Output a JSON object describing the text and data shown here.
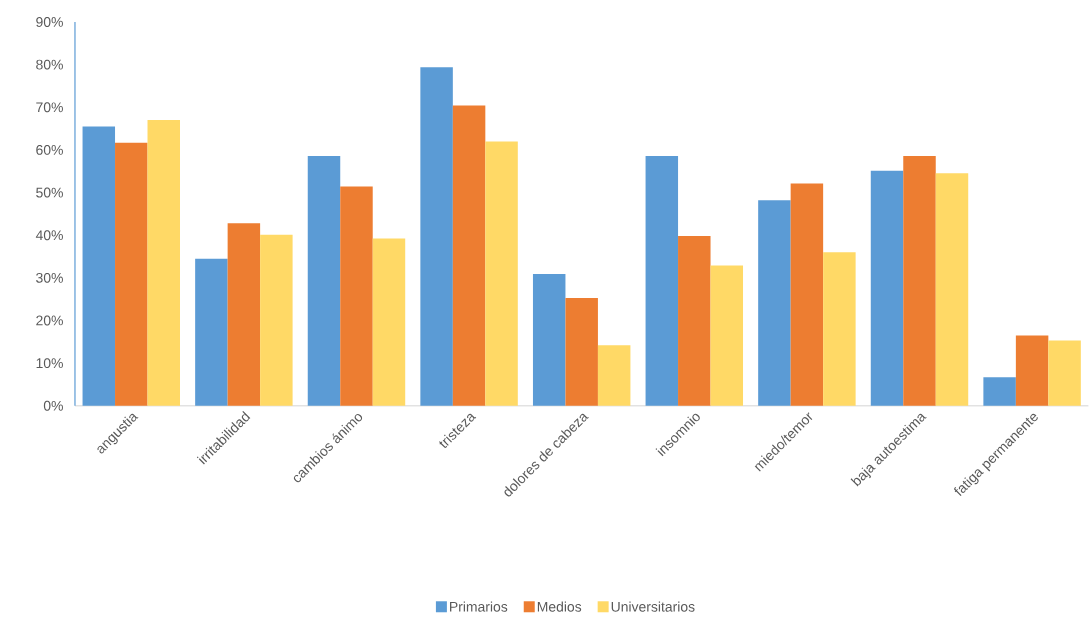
{
  "chart_data": {
    "type": "bar",
    "categories": [
      "angustia",
      "irritabilidad",
      "cambios ánimo",
      "tristeza",
      "dolores de cabeza",
      "insomnio",
      "miedo/temor",
      "baja autoestima",
      "fatiga permanente"
    ],
    "series": [
      {
        "name": "Primarios",
        "color": "#5b9bd5",
        "values": [
          65.5,
          34.5,
          58.6,
          79.4,
          30.9,
          58.6,
          48.2,
          55.1,
          6.7
        ]
      },
      {
        "name": "Medios",
        "color": "#ed7d31",
        "values": [
          61.7,
          42.8,
          51.4,
          70.4,
          25.3,
          39.8,
          52.1,
          58.6,
          16.5
        ]
      },
      {
        "name": "Universitarios",
        "color": "#ffd966",
        "values": [
          67.0,
          40.1,
          39.2,
          62.0,
          14.2,
          32.9,
          36.0,
          54.5,
          15.3
        ]
      }
    ],
    "ylim": [
      0,
      90
    ],
    "yticks": [
      {
        "value": 0,
        "label": "0%"
      },
      {
        "value": 10,
        "label": "10%"
      },
      {
        "value": 20,
        "label": "20%"
      },
      {
        "value": 30,
        "label": "30%"
      },
      {
        "value": 40,
        "label": "40%"
      },
      {
        "value": 50,
        "label": "50%"
      },
      {
        "value": 60,
        "label": "60%"
      },
      {
        "value": 70,
        "label": "70%"
      },
      {
        "value": 80,
        "label": "80%"
      },
      {
        "value": 90,
        "label": "90%"
      }
    ],
    "grid": false,
    "legend": "bottom"
  }
}
